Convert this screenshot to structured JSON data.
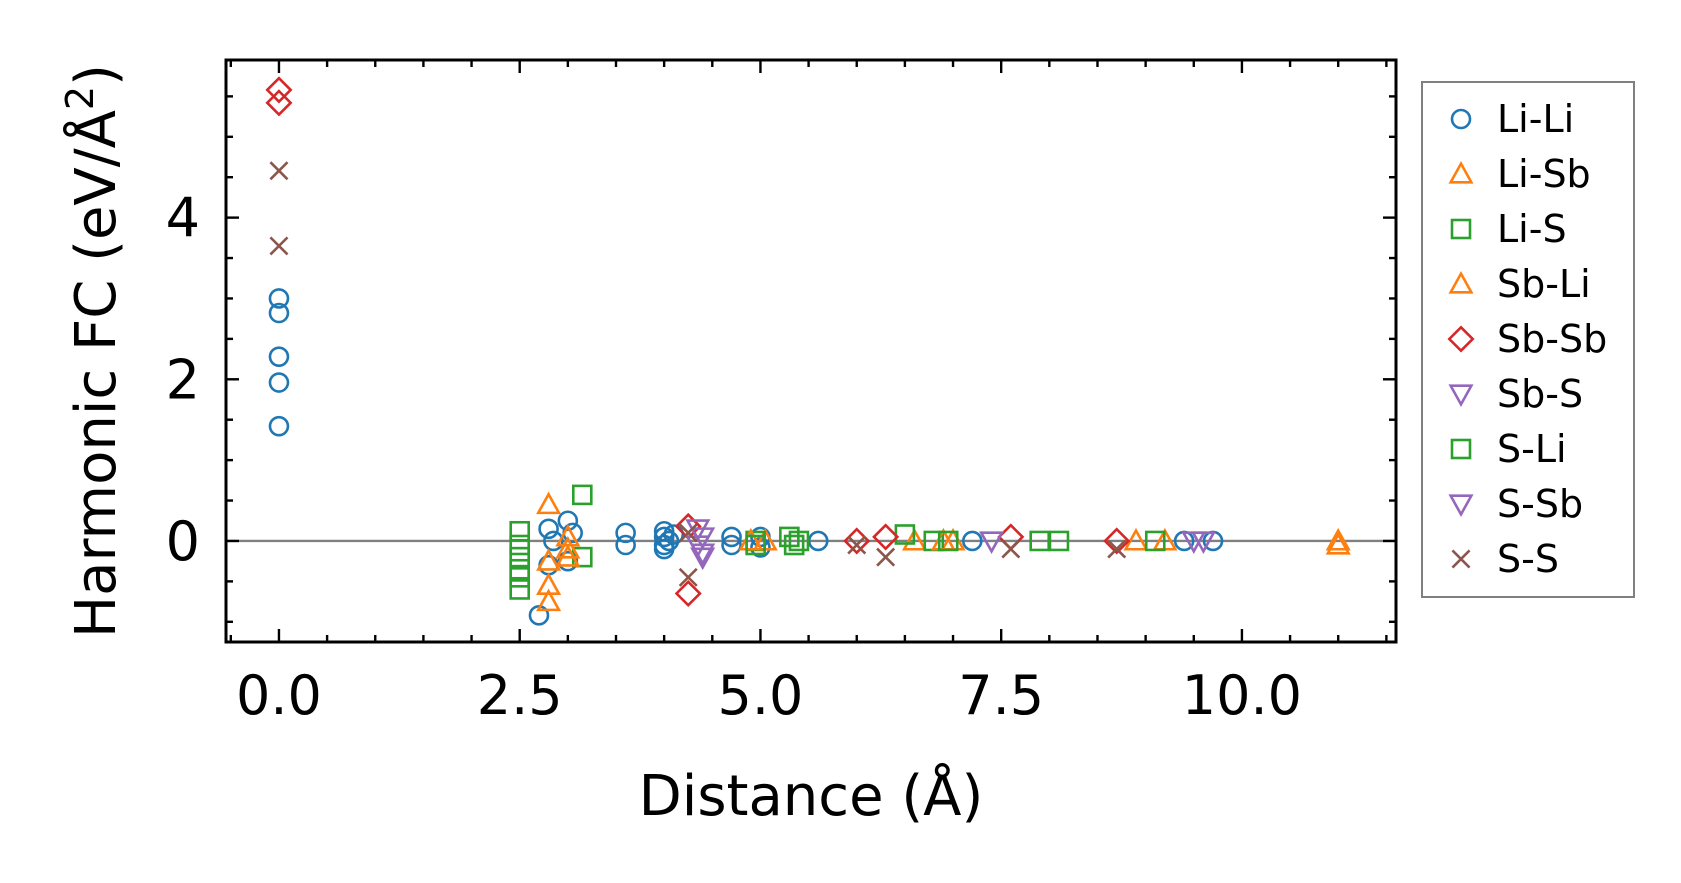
{
  "chart_data": {
    "type": "scatter",
    "title": "",
    "xlabel": "Distance (Å)",
    "ylabel": "Harmonic FC (eV/Å",
    "ylabel_superscript": "2",
    "ylabel_close": ")",
    "xlim": [
      -0.55,
      11.6
    ],
    "ylim": [
      -1.25,
      5.95
    ],
    "xticks": [
      0.0,
      2.5,
      5.0,
      7.5,
      10.0
    ],
    "xtick_labels": [
      "0.0",
      "2.5",
      "5.0",
      "7.5",
      "10.0"
    ],
    "yticks": [
      0,
      2,
      4
    ],
    "ytick_labels": [
      "0",
      "2",
      "4"
    ],
    "grid": false,
    "zero_line": true,
    "legend_position": "outside-right",
    "series": [
      {
        "name": "Li-Li",
        "marker": "circle",
        "color": "#1f77b4",
        "points": [
          [
            0,
            3.0
          ],
          [
            0,
            2.82
          ],
          [
            0,
            2.28
          ],
          [
            0,
            1.96
          ],
          [
            0,
            1.42
          ],
          [
            2.7,
            -0.92
          ],
          [
            2.8,
            0.15
          ],
          [
            2.8,
            -0.3
          ],
          [
            2.85,
            0.0
          ],
          [
            3.0,
            0.25
          ],
          [
            3.0,
            -0.25
          ],
          [
            3.05,
            0.1
          ],
          [
            3.6,
            0.1
          ],
          [
            3.6,
            -0.05
          ],
          [
            4.0,
            0.12
          ],
          [
            4.0,
            0.05
          ],
          [
            4.0,
            -0.05
          ],
          [
            4.0,
            -0.1
          ],
          [
            4.05,
            0.0
          ],
          [
            4.1,
            0.08
          ],
          [
            4.7,
            0.05
          ],
          [
            4.7,
            -0.05
          ],
          [
            5.0,
            0.05
          ],
          [
            5.0,
            -0.08
          ],
          [
            5.6,
            0.0
          ],
          [
            7.2,
            0.0
          ],
          [
            9.4,
            0.0
          ],
          [
            9.7,
            0.0
          ]
        ]
      },
      {
        "name": "Li-Sb",
        "marker": "triangle-up",
        "color": "#ff7f0e",
        "points": [
          [
            2.8,
            0.45
          ],
          [
            2.8,
            -0.25
          ],
          [
            2.8,
            -0.55
          ],
          [
            3.0,
            0.05
          ],
          [
            5.05,
            0.0
          ],
          [
            6.6,
            0.0
          ],
          [
            7.0,
            0.0
          ],
          [
            8.9,
            0.0
          ],
          [
            9.2,
            0.0
          ],
          [
            11.0,
            0.0
          ]
        ]
      },
      {
        "name": "Li-S",
        "marker": "square",
        "color": "#2ca02c",
        "points": [
          [
            2.5,
            0.12
          ],
          [
            2.5,
            -0.05
          ],
          [
            2.5,
            -0.2
          ],
          [
            2.5,
            -0.35
          ],
          [
            2.5,
            -0.45
          ],
          [
            2.5,
            -0.6
          ],
          [
            3.15,
            0.57
          ],
          [
            3.15,
            -0.2
          ],
          [
            4.95,
            0.0
          ],
          [
            5.3,
            0.05
          ],
          [
            5.4,
            0.0
          ],
          [
            6.5,
            0.08
          ],
          [
            6.8,
            0.0
          ],
          [
            7.9,
            0.0
          ],
          [
            8.1,
            0.0
          ],
          [
            9.1,
            0.0
          ]
        ]
      },
      {
        "name": "Sb-Li",
        "marker": "triangle-up",
        "color": "#ff7f0e",
        "points": [
          [
            2.8,
            -0.75
          ],
          [
            3.0,
            -0.1
          ],
          [
            3.0,
            -0.2
          ],
          [
            4.9,
            0.0
          ],
          [
            6.9,
            0.0
          ],
          [
            11.0,
            -0.05
          ]
        ]
      },
      {
        "name": "Sb-Sb",
        "marker": "diamond",
        "color": "#d62728",
        "points": [
          [
            0,
            5.58
          ],
          [
            0,
            5.42
          ],
          [
            4.25,
            0.18
          ],
          [
            4.25,
            -0.65
          ],
          [
            6.0,
            0.0
          ],
          [
            6.3,
            0.05
          ],
          [
            7.6,
            0.05
          ],
          [
            8.7,
            0.0
          ]
        ]
      },
      {
        "name": "Sb-S",
        "marker": "triangle-down",
        "color": "#9467bd",
        "points": [
          [
            4.35,
            0.15
          ],
          [
            4.4,
            -0.15
          ],
          [
            4.4,
            0.05
          ],
          [
            7.4,
            0.0
          ],
          [
            9.6,
            0.0
          ]
        ]
      },
      {
        "name": "S-Li",
        "marker": "square",
        "color": "#2ca02c",
        "points": [
          [
            4.95,
            -0.05
          ],
          [
            5.35,
            -0.05
          ],
          [
            6.95,
            0.0
          ]
        ]
      },
      {
        "name": "S-Sb",
        "marker": "triangle-down",
        "color": "#9467bd",
        "points": [
          [
            4.35,
            -0.05
          ],
          [
            4.4,
            -0.2
          ],
          [
            9.5,
            0.0
          ]
        ]
      },
      {
        "name": "S-S",
        "marker": "x",
        "color": "#8c564b",
        "points": [
          [
            0,
            4.58
          ],
          [
            0,
            3.65
          ],
          [
            4.25,
            0.1
          ],
          [
            4.25,
            -0.45
          ],
          [
            6.0,
            -0.05
          ],
          [
            6.3,
            -0.2
          ],
          [
            7.6,
            -0.1
          ],
          [
            8.7,
            -0.1
          ]
        ]
      }
    ]
  }
}
